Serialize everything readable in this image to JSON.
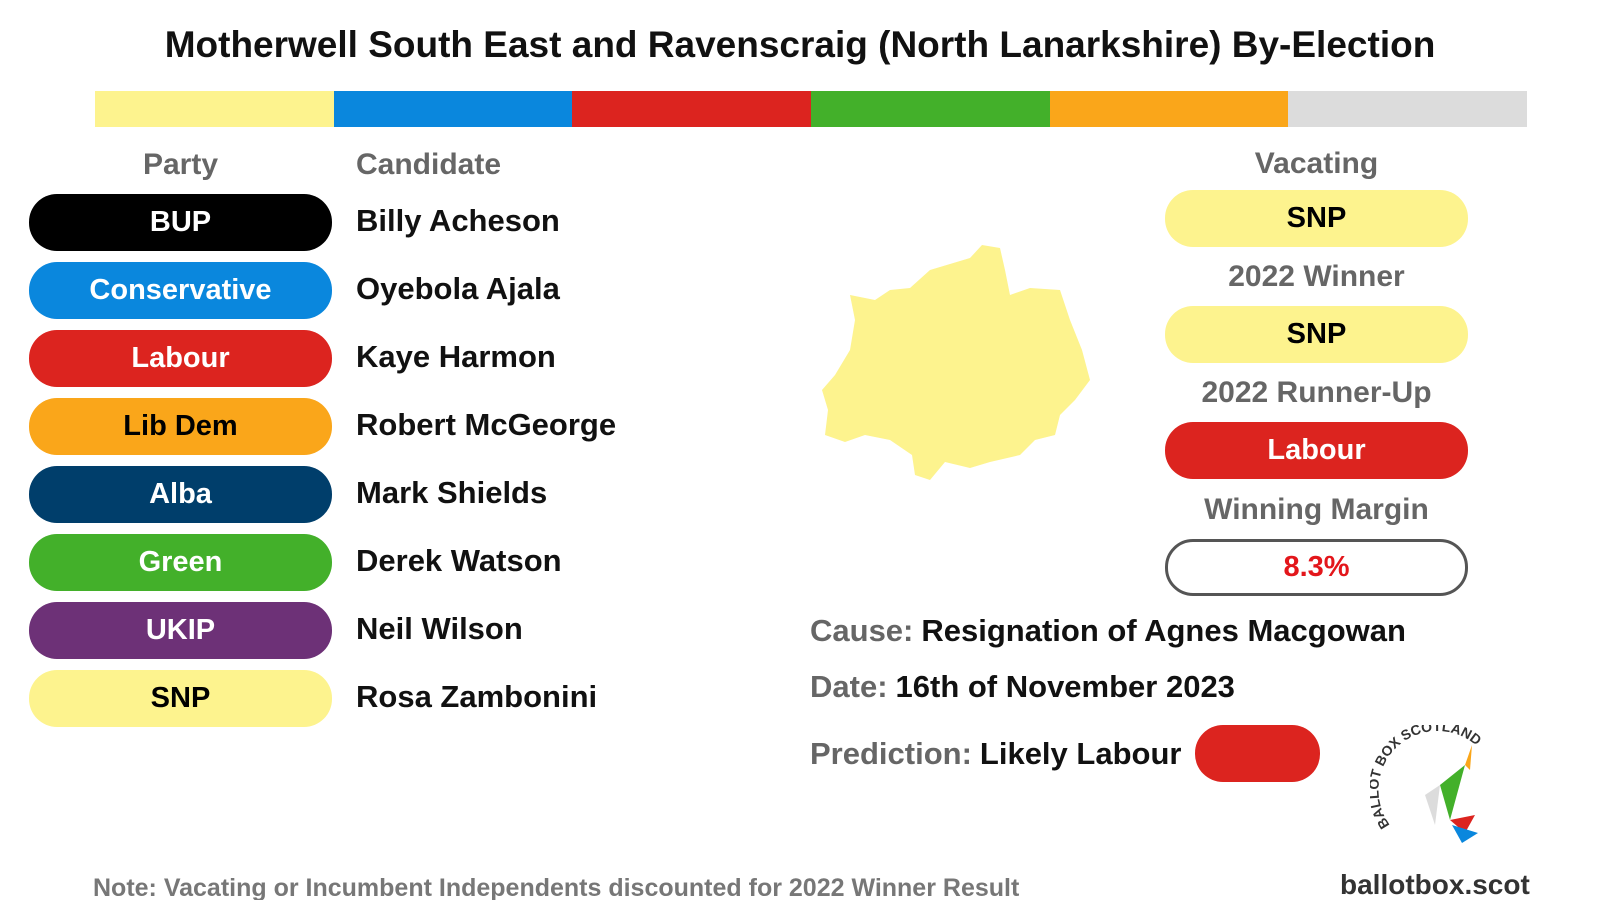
{
  "title": "Motherwell South East and Ravenscraig (North Lanarkshire) By-Election",
  "headers": {
    "party": "Party",
    "candidate": "Candidate"
  },
  "candidates": [
    {
      "party": "BUP",
      "name": "Billy Acheson",
      "color": "#000000",
      "text_color": "#ffffff"
    },
    {
      "party": "Conservative",
      "name": "Oyebola Ajala",
      "color": "#0a87dd",
      "text_color": "#ffffff"
    },
    {
      "party": "Labour",
      "name": "Kaye Harmon",
      "color": "#dc241f",
      "text_color": "#ffffff"
    },
    {
      "party": "Lib Dem",
      "name": "Robert McGeorge",
      "color": "#faa61a",
      "text_color": "#000000"
    },
    {
      "party": "Alba",
      "name": "Mark Shields",
      "color": "#003e6b",
      "text_color": "#ffffff"
    },
    {
      "party": "Green",
      "name": "Derek Watson",
      "color": "#43b02a",
      "text_color": "#ffffff"
    },
    {
      "party": "UKIP",
      "name": "Neil Wilson",
      "color": "#6d3177",
      "text_color": "#ffffff"
    },
    {
      "party": "SNP",
      "name": "Rosa Zambonini",
      "color": "#fdf38e",
      "text_color": "#000000"
    }
  ],
  "results": [
    {
      "label": "Vacating",
      "party": "SNP",
      "color": "#fdf38e",
      "text_color": "#000000"
    },
    {
      "label": "2022 Winner",
      "party": "SNP",
      "color": "#fdf38e",
      "text_color": "#000000"
    },
    {
      "label": "2022 Runner-Up",
      "party": "Labour",
      "color": "#dc241f",
      "text_color": "#ffffff"
    },
    {
      "label": "Winning Margin",
      "party": "8.3%",
      "color": "#ffffff",
      "text_color": "#e3161b"
    }
  ],
  "details": [
    {
      "label": "Cause:",
      "value": "Resignation of Agnes Macgowan"
    },
    {
      "label": "Date:",
      "value": "16th of November 2023"
    },
    {
      "label": "Prediction:",
      "value": "Likely Labour",
      "color": "#dc241f"
    }
  ],
  "note": "Note: Vacating  or Incumbent Independents discounted for 2022 Winner Result",
  "logo_text": "BALLOT BOX SCOTLAND",
  "site": "ballotbox.scot"
}
